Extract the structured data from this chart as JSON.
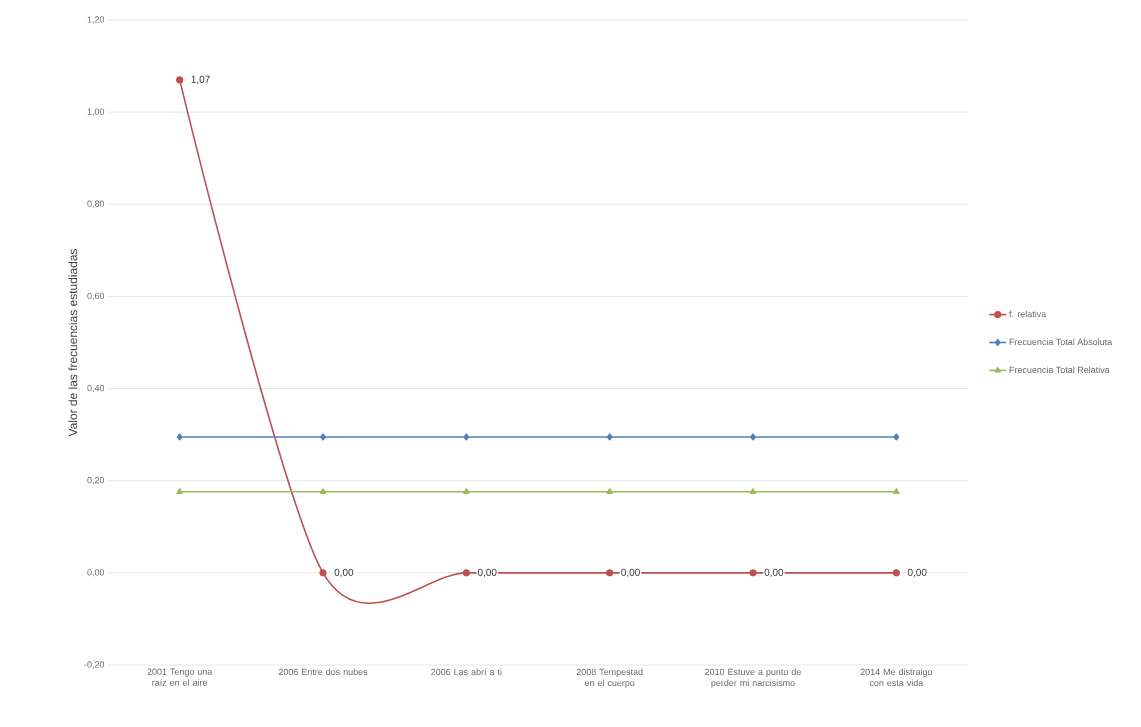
{
  "chart_data": {
    "type": "line",
    "ylabel": "Valor de las frecuencias estudiadas",
    "categories": [
      "2001 Tengo una raíz en el aire",
      "2006 Entre dos nubes",
      "2006 Las abrí a ti",
      "2008 Tempestad en el cuerpo",
      "2010 Estuve a punto de perder mi narcisismo",
      "2014 Me distraigo con esta vida"
    ],
    "series": [
      {
        "name": "f. relativa",
        "color": "#c0504d",
        "marker": "circle",
        "values": [
          1.07,
          0,
          0,
          0,
          0,
          0
        ],
        "value_labels": [
          "1,07",
          "0,00",
          "0,00",
          "0,00",
          "0,00",
          "0,00"
        ]
      },
      {
        "name": "Frecuencia Total Absoluta",
        "color": "#4f81bd",
        "marker": "diamond",
        "values": [
          0.295,
          0.295,
          0.295,
          0.295,
          0.295,
          0.295
        ]
      },
      {
        "name": "Frecuencia Total Relativa",
        "color": "#9bbb59",
        "marker": "triangle",
        "values": [
          0.176,
          0.176,
          0.176,
          0.176,
          0.176,
          0.176
        ]
      }
    ],
    "ylim": [
      -0.2,
      1.2
    ],
    "yticks": [
      {
        "value": -0.2,
        "label": "-0,20"
      },
      {
        "value": 0,
        "label": "0,00"
      },
      {
        "value": 0.2,
        "label": "0,20"
      },
      {
        "value": 0.4,
        "label": "0,40"
      },
      {
        "value": 0.6,
        "label": "0,60"
      },
      {
        "value": 0.8,
        "label": "0,80"
      },
      {
        "value": 1.0,
        "label": "1,00"
      },
      {
        "value": 1.2,
        "label": "1,20"
      }
    ],
    "grid": "y",
    "legend": "right"
  }
}
